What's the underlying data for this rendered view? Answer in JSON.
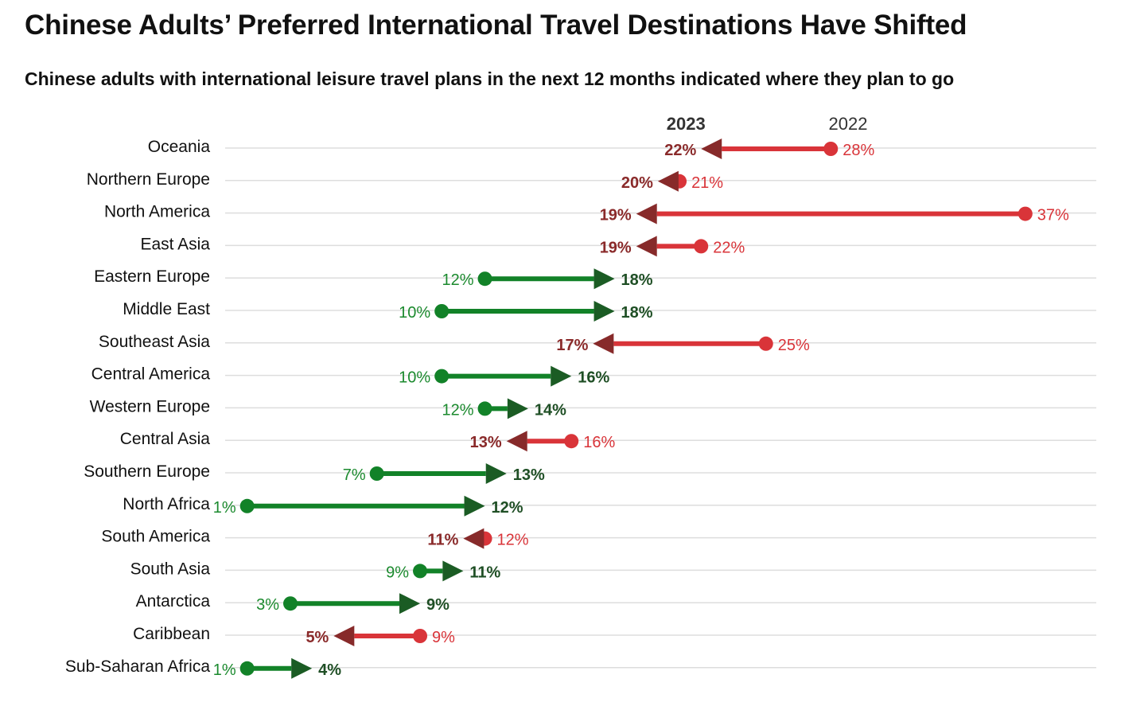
{
  "title": "Chinese Adults’ Preferred International Travel Destinations Have Shifted",
  "subtitle": "Chinese adults with international leisure travel plans in the next 12 months indicated where they plan to go",
  "colors": {
    "increase_line": "#128228",
    "increase_arrow": "#1b5c24",
    "increase_label_start": "#1b8a2e",
    "increase_label_end": "#1f4f25",
    "decrease_line": "#d93439",
    "decrease_arrow": "#872a2a",
    "decrease_label_start": "#d93439",
    "decrease_label_end": "#8a2a2a",
    "gridline": "#dddddd"
  },
  "chart_data": {
    "type": "dumbbell",
    "legend": {
      "series_2023": "2023",
      "series_2022": "2022",
      "placement": "top"
    },
    "unit": "%",
    "xlim": [
      0,
      40
    ],
    "grid": true,
    "series_names": [
      "2022",
      "2023"
    ],
    "categories": [
      "Oceania",
      "Northern Europe",
      "North America",
      "East Asia",
      "Eastern Europe",
      "Middle East",
      "Southeast Asia",
      "Central America",
      "Western Europe",
      "Central Asia",
      "Southern Europe",
      "North Africa",
      "South America",
      "South Asia",
      "Antarctica",
      "Caribbean",
      "Sub-Saharan Africa"
    ],
    "values_2022": [
      28,
      21,
      37,
      22,
      12,
      10,
      25,
      10,
      12,
      16,
      7,
      1,
      12,
      9,
      3,
      9,
      1
    ],
    "values_2023": [
      22,
      20,
      19,
      19,
      18,
      18,
      17,
      16,
      14,
      13,
      13,
      12,
      11,
      11,
      9,
      5,
      4
    ]
  }
}
